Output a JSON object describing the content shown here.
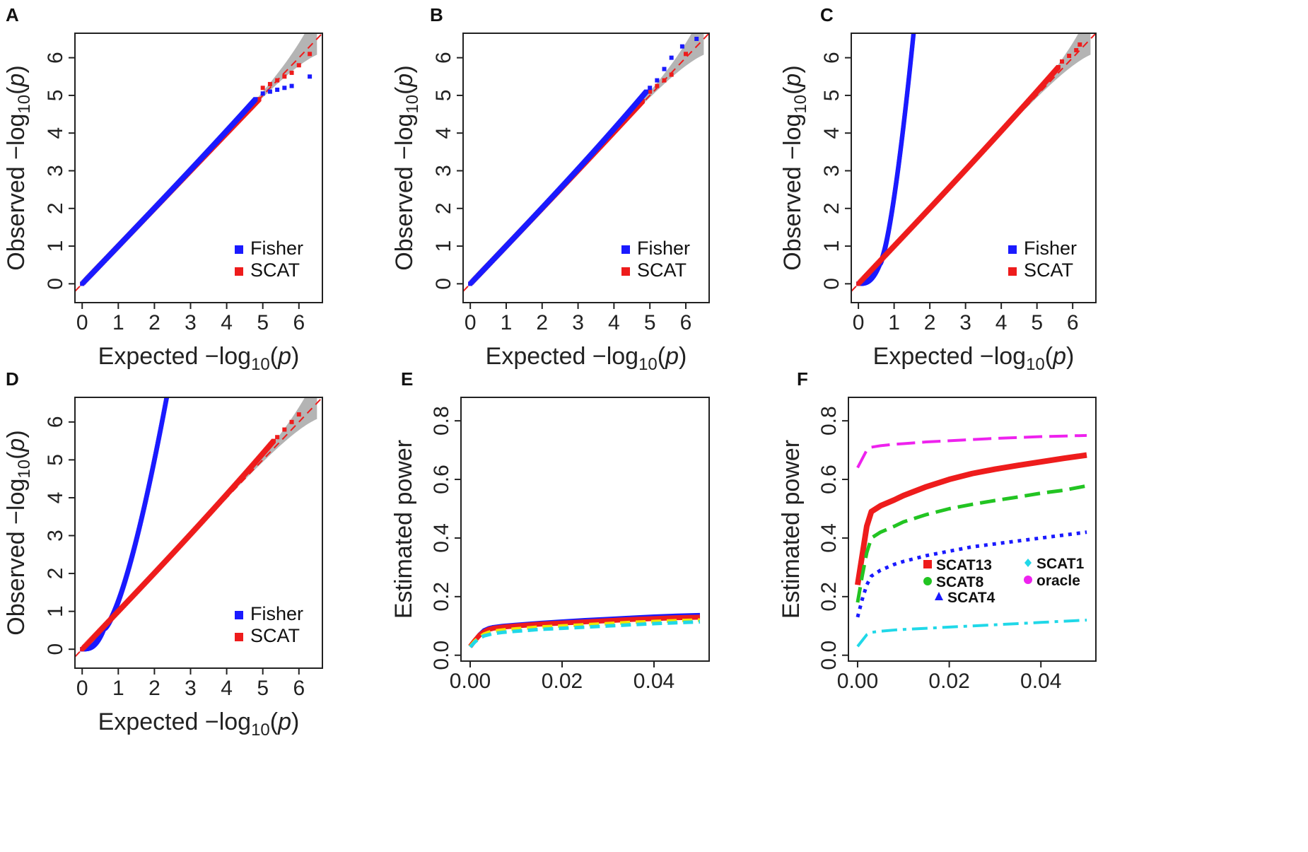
{
  "figure": {
    "background": "#ffffff"
  },
  "colors": {
    "fisher": "#1a1aff",
    "scat": "#ee1c1c",
    "band": "#b4b4b4",
    "diagonal": "#ee1c1c"
  },
  "chart_data": [
    {
      "id": "A",
      "label": "A",
      "type": "scatter",
      "title": "",
      "xlabel": "Expected  −log10(p)",
      "ylabel": "Observed  −log10(p)",
      "xlim": [
        -0.2,
        6.65
      ],
      "ylim": [
        -0.5,
        6.65
      ],
      "xticks": [
        0,
        1,
        2,
        3,
        4,
        5,
        6
      ],
      "yticks": [
        0,
        1,
        2,
        3,
        4,
        5,
        6
      ],
      "tick_labels": [
        "0",
        "1",
        "2",
        "3",
        "4",
        "5",
        "6"
      ],
      "legend_position": "bottom-right",
      "legend": [
        {
          "name": "Fisher",
          "color": "#1a1aff"
        },
        {
          "name": "SCAT",
          "color": "#ee1c1c"
        }
      ],
      "series": [
        {
          "name": "Fisher",
          "color": "#1a1aff",
          "curve": {
            "type": "linear_then",
            "end_x": 4.8,
            "deviation": 0.1,
            "scatter_end": [
              [
                5.0,
                5.05
              ],
              [
                5.2,
                5.1
              ],
              [
                5.4,
                5.15
              ],
              [
                5.6,
                5.2
              ],
              [
                5.8,
                5.25
              ],
              [
                6.3,
                5.5
              ]
            ]
          }
        },
        {
          "name": "SCAT",
          "color": "#ee1c1c",
          "curve": {
            "type": "linear_then",
            "end_x": 4.9,
            "deviation": 0.0,
            "scatter_end": [
              [
                5.0,
                5.2
              ],
              [
                5.2,
                5.3
              ],
              [
                5.4,
                5.4
              ],
              [
                5.6,
                5.5
              ],
              [
                5.8,
                5.6
              ],
              [
                6.0,
                5.8
              ],
              [
                6.3,
                6.1
              ]
            ]
          }
        }
      ]
    },
    {
      "id": "B",
      "label": "B",
      "type": "scatter",
      "title": "",
      "xlabel": "Expected  −log10(p)",
      "ylabel": "Observed  −log10(p)",
      "xlim": [
        -0.2,
        6.65
      ],
      "ylim": [
        -0.5,
        6.65
      ],
      "xticks": [
        0,
        1,
        2,
        3,
        4,
        5,
        6
      ],
      "yticks": [
        0,
        1,
        2,
        3,
        4,
        5,
        6
      ],
      "tick_labels": [
        "0",
        "1",
        "2",
        "3",
        "4",
        "5",
        "6"
      ],
      "legend_position": "bottom-right",
      "legend": [
        {
          "name": "Fisher",
          "color": "#1a1aff"
        },
        {
          "name": "SCAT",
          "color": "#ee1c1c"
        }
      ],
      "series": [
        {
          "name": "Fisher",
          "color": "#1a1aff",
          "curve": {
            "type": "linear_then",
            "end_x": 4.9,
            "deviation": 0.2,
            "scatter_end": [
              [
                5.0,
                5.2
              ],
              [
                5.2,
                5.4
              ],
              [
                5.4,
                5.7
              ],
              [
                5.6,
                6.0
              ],
              [
                5.9,
                6.3
              ],
              [
                6.3,
                6.5
              ]
            ]
          }
        },
        {
          "name": "SCAT",
          "color": "#ee1c1c",
          "curve": {
            "type": "linear_then",
            "end_x": 4.8,
            "deviation": 0.05,
            "scatter_end": [
              [
                5.0,
                5.1
              ],
              [
                5.2,
                5.25
              ],
              [
                5.4,
                5.4
              ],
              [
                5.6,
                5.55
              ],
              [
                6.0,
                6.1
              ]
            ]
          }
        }
      ]
    },
    {
      "id": "C",
      "label": "C",
      "type": "scatter",
      "title": "",
      "xlabel": "Expected  −log10(p)",
      "ylabel": "Observed  −log10(p)",
      "xlim": [
        -0.2,
        6.65
      ],
      "ylim": [
        -0.5,
        6.65
      ],
      "xticks": [
        0,
        1,
        2,
        3,
        4,
        5,
        6
      ],
      "yticks": [
        0,
        1,
        2,
        3,
        4,
        5,
        6
      ],
      "tick_labels": [
        "0",
        "1",
        "2",
        "3",
        "4",
        "5",
        "6"
      ],
      "legend_position": "bottom-right",
      "legend": [
        {
          "name": "Fisher",
          "color": "#1a1aff"
        },
        {
          "name": "SCAT",
          "color": "#ee1c1c"
        }
      ],
      "series": [
        {
          "name": "Fisher",
          "color": "#1a1aff",
          "curve": {
            "type": "steep",
            "pivot": 0.6,
            "end_x": 1.55,
            "end_y": 6.7
          }
        },
        {
          "name": "SCAT",
          "color": "#ee1c1c",
          "curve": {
            "type": "linear_then",
            "end_x": 5.6,
            "deviation": 0.15,
            "scatter_end": [
              [
                5.7,
                5.9
              ],
              [
                5.9,
                6.05
              ],
              [
                6.1,
                6.2
              ],
              [
                6.2,
                6.35
              ]
            ]
          }
        }
      ]
    },
    {
      "id": "D",
      "label": "D",
      "type": "scatter",
      "title": "",
      "xlabel": "Expected  −log10(p)",
      "ylabel": "Observed  −log10(p)",
      "xlim": [
        -0.2,
        6.65
      ],
      "ylim": [
        -0.5,
        6.65
      ],
      "xticks": [
        0,
        1,
        2,
        3,
        4,
        5,
        6
      ],
      "yticks": [
        0,
        1,
        2,
        3,
        4,
        5,
        6
      ],
      "tick_labels": [
        "0",
        "1",
        "2",
        "3",
        "4",
        "5",
        "6"
      ],
      "legend_position": "bottom-right",
      "legend": [
        {
          "name": "Fisher",
          "color": "#1a1aff"
        },
        {
          "name": "SCAT",
          "color": "#ee1c1c"
        }
      ],
      "series": [
        {
          "name": "Fisher",
          "color": "#1a1aff",
          "curve": {
            "type": "steep",
            "pivot": 0.6,
            "end_x": 2.35,
            "end_y": 6.7
          }
        },
        {
          "name": "SCAT",
          "color": "#ee1c1c",
          "curve": {
            "type": "linear_then",
            "end_x": 5.3,
            "deviation": 0.2,
            "scatter_end": [
              [
                5.4,
                5.6
              ],
              [
                5.6,
                5.8
              ],
              [
                5.8,
                6.0
              ],
              [
                6.0,
                6.2
              ]
            ]
          }
        }
      ]
    },
    {
      "id": "E",
      "label": "E",
      "type": "line",
      "title": "",
      "xlabel": "",
      "ylabel": "Estimated power",
      "xlim": [
        -0.002,
        0.052
      ],
      "ylim": [
        -0.02,
        0.88
      ],
      "xticks": [
        0.0,
        0.02,
        0.04
      ],
      "x_tick_labels": [
        "0.00",
        "0.02",
        "0.04"
      ],
      "yticks": [
        0.0,
        0.2,
        0.4,
        0.6,
        0.8
      ],
      "y_tick_labels": [
        "0.0",
        "0.2",
        "0.4",
        "0.6",
        "0.8"
      ],
      "x": [
        0.0,
        0.001,
        0.002,
        0.003,
        0.004,
        0.005,
        0.007,
        0.01,
        0.015,
        0.02,
        0.025,
        0.03,
        0.035,
        0.04,
        0.045,
        0.05
      ],
      "series": [
        {
          "name": "blue",
          "color": "#1a1aff",
          "dash": "",
          "width": 6,
          "values": [
            0.03,
            0.05,
            0.07,
            0.085,
            0.092,
            0.096,
            0.1,
            0.104,
            0.11,
            0.115,
            0.12,
            0.124,
            0.128,
            0.132,
            0.135,
            0.137
          ]
        },
        {
          "name": "red",
          "color": "#ee1c1c",
          "dash": "",
          "width": 7,
          "values": [
            0.03,
            0.05,
            0.068,
            0.08,
            0.088,
            0.092,
            0.096,
            0.1,
            0.106,
            0.11,
            0.114,
            0.118,
            0.122,
            0.125,
            0.128,
            0.13
          ]
        },
        {
          "name": "yellow",
          "color": "#f2e600",
          "dash": "14,8",
          "width": 5,
          "values": [
            0.03,
            0.048,
            0.062,
            0.072,
            0.078,
            0.082,
            0.086,
            0.09,
            0.096,
            0.1,
            0.104,
            0.108,
            0.112,
            0.115,
            0.118,
            0.12
          ]
        },
        {
          "name": "cyan",
          "color": "#20d8e8",
          "dash": "14,8",
          "width": 5,
          "values": [
            0.028,
            0.045,
            0.058,
            0.066,
            0.07,
            0.074,
            0.078,
            0.082,
            0.088,
            0.092,
            0.096,
            0.1,
            0.104,
            0.108,
            0.111,
            0.114
          ]
        }
      ]
    },
    {
      "id": "F",
      "label": "F",
      "type": "line",
      "title": "",
      "xlabel": "",
      "ylabel": "Estimated power",
      "xlim": [
        -0.002,
        0.052
      ],
      "ylim": [
        -0.02,
        0.88
      ],
      "xticks": [
        0.0,
        0.02,
        0.04
      ],
      "x_tick_labels": [
        "0.00",
        "0.02",
        "0.04"
      ],
      "yticks": [
        0.0,
        0.2,
        0.4,
        0.6,
        0.8
      ],
      "y_tick_labels": [
        "0.0",
        "0.2",
        "0.4",
        "0.6",
        "0.8"
      ],
      "x": [
        0.0,
        0.001,
        0.002,
        0.003,
        0.005,
        0.008,
        0.01,
        0.015,
        0.02,
        0.025,
        0.03,
        0.035,
        0.04,
        0.045,
        0.05
      ],
      "legend_position": "center-right",
      "legend": [
        {
          "name": "SCAT13",
          "color": "#ee1c1c",
          "marker": "square"
        },
        {
          "name": "SCAT1",
          "color": "#20d8e8",
          "marker": "diamond"
        },
        {
          "name": "SCAT8",
          "color": "#22c422",
          "marker": "circle"
        },
        {
          "name": "oracle",
          "color": "#ee22ee",
          "marker": "circle"
        },
        {
          "name": "SCAT4",
          "color": "#1a1aff",
          "marker": "triangle"
        }
      ],
      "series": [
        {
          "name": "oracle",
          "color": "#ee22ee",
          "dash": "26,10",
          "width": 4,
          "values": [
            0.64,
            0.67,
            0.7,
            0.71,
            0.715,
            0.72,
            0.722,
            0.728,
            0.732,
            0.736,
            0.74,
            0.743,
            0.746,
            0.748,
            0.75
          ]
        },
        {
          "name": "SCAT13",
          "color": "#ee1c1c",
          "dash": "",
          "width": 8,
          "values": [
            0.24,
            0.34,
            0.44,
            0.49,
            0.51,
            0.53,
            0.545,
            0.575,
            0.6,
            0.62,
            0.635,
            0.648,
            0.66,
            0.672,
            0.683
          ]
        },
        {
          "name": "SCAT8",
          "color": "#22c422",
          "dash": "22,10",
          "width": 5,
          "values": [
            0.18,
            0.27,
            0.35,
            0.4,
            0.42,
            0.44,
            0.455,
            0.48,
            0.5,
            0.515,
            0.528,
            0.54,
            0.553,
            0.563,
            0.578
          ]
        },
        {
          "name": "SCAT4",
          "color": "#1a1aff",
          "dash": "5,7",
          "width": 5,
          "values": [
            0.13,
            0.19,
            0.24,
            0.27,
            0.29,
            0.31,
            0.32,
            0.34,
            0.355,
            0.37,
            0.38,
            0.39,
            0.4,
            0.41,
            0.42
          ]
        },
        {
          "name": "SCAT1",
          "color": "#20d8e8",
          "dash": "22,8,5,8",
          "width": 4,
          "values": [
            0.03,
            0.05,
            0.07,
            0.078,
            0.082,
            0.086,
            0.088,
            0.092,
            0.096,
            0.1,
            0.104,
            0.108,
            0.112,
            0.116,
            0.12
          ]
        }
      ]
    }
  ]
}
